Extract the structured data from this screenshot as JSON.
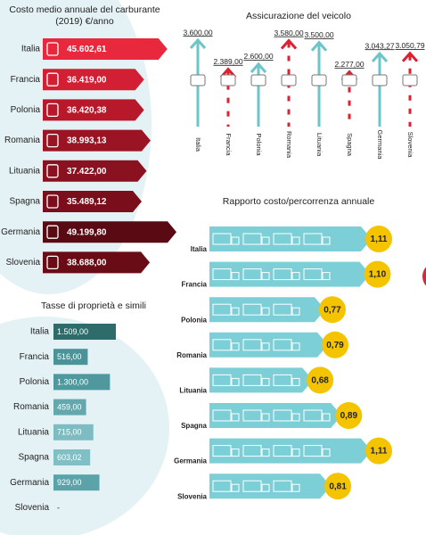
{
  "chart_data": [
    {
      "type": "hbar",
      "title": "Costo medio annuale del carburante",
      "subtitle": "(2019) €/anno",
      "categories": [
        "Italia",
        "Francia",
        "Polonia",
        "Romania",
        "Lituania",
        "Spagna",
        "Germania",
        "Slovenia"
      ],
      "values": [
        45602.61,
        36419.0,
        36420.38,
        38993.13,
        37422.0,
        35489.12,
        49199.8,
        38688.0
      ],
      "value_labels": [
        "45.602,61",
        "36.419,00",
        "36.420,38",
        "38.993,13",
        "37.422,00",
        "35.489,12",
        "49.199,80",
        "38.688,00"
      ],
      "colors": [
        "#e8283c",
        "#d21f33",
        "#b8192a",
        "#9a1424",
        "#8a1120",
        "#7a0e1a",
        "#5a0a12",
        "#6a0c15"
      ]
    },
    {
      "type": "arrows",
      "title": "Assicurazione del veicolo",
      "categories": [
        "Italia",
        "Francia",
        "Polonia",
        "Romania",
        "Lituania",
        "Spagna",
        "Germania",
        "Slovenia"
      ],
      "values": [
        3600.0,
        2389.0,
        2600.0,
        3580.0,
        3500.0,
        2277.0,
        3043.27,
        3050.79
      ],
      "value_labels": [
        "3.600,00",
        "2.389,00",
        "2.600,00",
        "3.580,00",
        "3.500,00",
        "2.277,00",
        "3.043,27",
        "3.050,79"
      ],
      "colors": [
        "#6cc5c8",
        "#e02030",
        "#6cc5c8",
        "#e02030",
        "#6cc5c8",
        "#e02030",
        "#6cc5c8",
        "#e02030"
      ],
      "styles": [
        "solid",
        "dashed",
        "solid",
        "dashed",
        "solid",
        "dashed",
        "solid",
        "dashed"
      ]
    },
    {
      "type": "tbar",
      "title": "Tasse di proprietà e simili",
      "categories": [
        "Italia",
        "Francia",
        "Polonia",
        "Romania",
        "Lituania",
        "Spagna",
        "Germania",
        "Slovenia"
      ],
      "values": [
        1509.0,
        516.0,
        1300.0,
        459.0,
        715.0,
        603.02,
        929.0,
        null
      ],
      "value_labels": [
        "1.509,00",
        "516,00",
        "1.300,00",
        "459,00",
        "715,00",
        "603,02",
        "929,00",
        "-"
      ],
      "colors": [
        "#2e6b6b",
        "#4a9499",
        "#4f999e",
        "#64a8ad",
        "#7dbcc0",
        "#80bfc3",
        "#5aa3a8",
        "#5aa3a8"
      ]
    },
    {
      "type": "trucks",
      "title": "Rapporto costo/percorrenza annuale",
      "categories": [
        "Italia",
        "Francia",
        "Polonia",
        "Romania",
        "Lituania",
        "Spagna",
        "Germania",
        "Slovenia"
      ],
      "values": [
        1.11,
        1.1,
        0.77,
        0.79,
        0.68,
        0.89,
        1.11,
        0.81
      ],
      "value_labels": [
        "1,11",
        "1,10",
        "0,77",
        "0,79",
        "0,68",
        "0,89",
        "1,11",
        "0,81"
      ],
      "color": "#7ccfd6",
      "marker_color": "#f5c400"
    }
  ]
}
